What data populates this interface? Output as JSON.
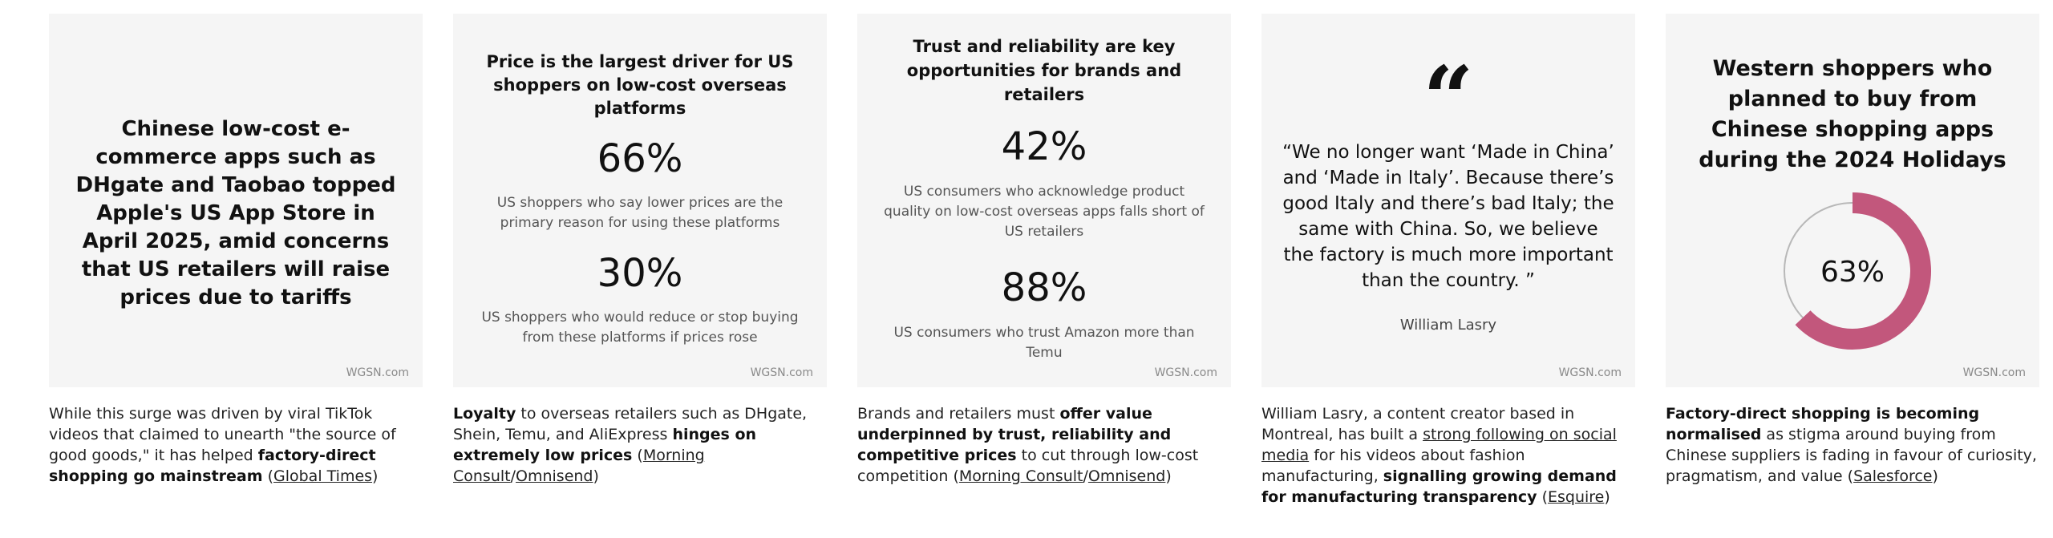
{
  "watermark": "WGSN.com",
  "cards": {
    "c1": {
      "headline": "Chinese low-cost e-commerce apps such as DHgate and Taobao topped Apple's US App Store in April 2025, amid concerns that US retailers will raise prices due to tariffs"
    },
    "c2": {
      "headline": "Price is the largest driver for US shoppers on low-cost overseas platforms",
      "stat1_value": "66%",
      "stat1_desc": "US shoppers who say lower prices are the primary reason for using these platforms",
      "stat2_value": "30%",
      "stat2_desc": "US shoppers who would reduce or stop buying from these platforms if prices rose"
    },
    "c3": {
      "headline": "Trust and reliability are key opportunities for brands and retailers",
      "stat1_value": "42%",
      "stat1_desc": "US consumers who acknowledge product quality on low-cost overseas apps falls short of US retailers",
      "stat2_value": "88%",
      "stat2_desc": "US consumers who trust Amazon more than Temu"
    },
    "c4": {
      "quote_mark": "“",
      "quote": "“We no longer want ‘Made in China’ and ‘Made in Italy’. Because there’s good Italy and there’s bad Italy; the same with China. So, we believe the factory is much more important than the country. ”",
      "author": "William Lasry"
    },
    "c5": {
      "headline": "Western shoppers who planned to buy from Chinese shopping apps during the 2024 Holidays",
      "donut_label": "63%",
      "donut_value": 63,
      "accent": "#c2577c"
    }
  },
  "captions": {
    "c1": {
      "t1": "While this surge was driven by viral TikTok videos that claimed to unearth \"the source of good goods,\" it has helped ",
      "b1": "factory-direct shopping go mainstream",
      "t2": " (",
      "l1": "Global Times",
      "t3": ")"
    },
    "c2": {
      "b1": "Loyalty",
      "t1": " to overseas retailers such as DHgate, Shein, Temu, and AliExpress ",
      "b2": "hinges on extremely low prices",
      "t2": " (",
      "l1": "Morning Consult",
      "t3": "/",
      "l2": "Omnisend",
      "t4": ")"
    },
    "c3": {
      "t1": "Brands and retailers must ",
      "b1": "offer value underpinned by trust, reliability and competitive prices",
      "t2": " to cut through low-cost competition (",
      "l1": "Morning Consult",
      "t3": "/",
      "l2": "Omnisend",
      "t4": ")"
    },
    "c4": {
      "t1": "William Lasry, a content creator based in Montreal, has built a ",
      "l1": "strong following on social media",
      "t2": " for his videos about fashion manufacturing, ",
      "b1": "signalling growing demand for manufacturing transparency",
      "t3": " (",
      "l2": "Esquire",
      "t4": ")"
    },
    "c5": {
      "b1": "Factory-direct shopping is becoming normalised",
      "t1": " as stigma around buying from Chinese suppliers is fading in favour of curiosity, pragmatism, and value (",
      "l1": "Salesforce",
      "t2": ")"
    }
  }
}
